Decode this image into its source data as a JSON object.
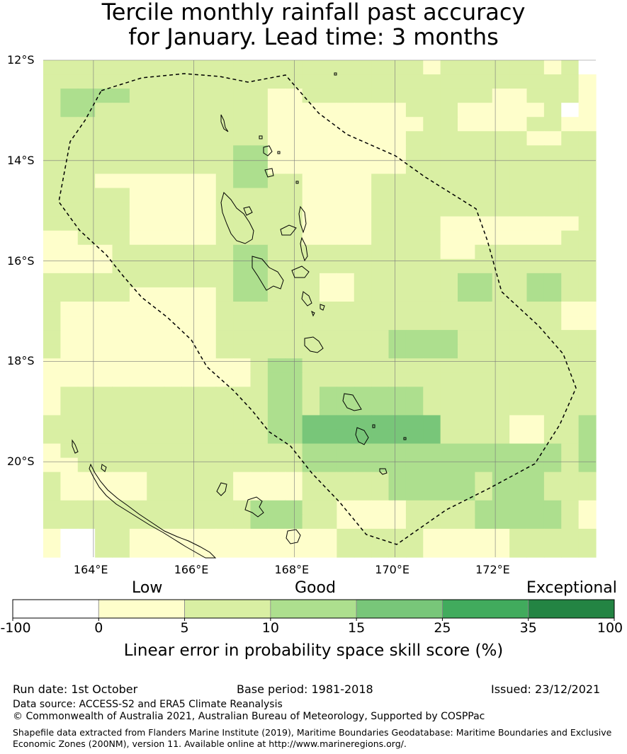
{
  "title_lines": [
    "Tercile monthly rainfall past accuracy",
    "for January. Lead time: 3 months"
  ],
  "chart_data": {
    "type": "heatmap",
    "lon_range": [
      163,
      174
    ],
    "lat_range": [
      -21.9,
      -12
    ],
    "grid_origin_lon": 162.86,
    "grid_origin_lat": -12,
    "cell_deg": 0.833,
    "lon_ticks": [
      "164°E",
      "166°E",
      "168°E",
      "170°E",
      "172°E"
    ],
    "lon_tick_values": [
      164,
      166,
      168,
      170,
      172
    ],
    "lat_ticks": [
      "12°S",
      "14°S",
      "16°S",
      "18°S",
      "20°S"
    ],
    "lat_tick_values": [
      -12,
      -14,
      -16,
      -18,
      -20
    ],
    "grid": true,
    "colorbar": {
      "label": "Linear error in probability space skill score (%)",
      "category_labels": [
        "Low",
        "Good",
        "Exceptional"
      ],
      "bounds": [
        "-100",
        "0",
        "5",
        "10",
        "15",
        "25",
        "35",
        "100"
      ],
      "colors": [
        "#ffffff",
        "#fefecb",
        "#d9efa3",
        "#addf8e",
        "#78c679",
        "#41ab5d",
        "#238443"
      ]
    },
    "cell_classes": [
      [
        2,
        2,
        2,
        2,
        2,
        2,
        2,
        2,
        2,
        2,
        2,
        2,
        2,
        2,
        2,
        2,
        2,
        2,
        2,
        2,
        2,
        2,
        1,
        2,
        2,
        2,
        2,
        2,
        2,
        1,
        2,
        0
      ],
      [
        2,
        2,
        2,
        2,
        2,
        2,
        2,
        2,
        2,
        2,
        2,
        2,
        2,
        2,
        2,
        2,
        2,
        2,
        2,
        2,
        2,
        2,
        2,
        2,
        2,
        2,
        2,
        2,
        2,
        2,
        2,
        1
      ],
      [
        2,
        3,
        3,
        3,
        3,
        2,
        2,
        2,
        2,
        2,
        2,
        2,
        2,
        1,
        1,
        2,
        2,
        2,
        2,
        2,
        2,
        2,
        2,
        2,
        2,
        2,
        1,
        1,
        2,
        2,
        2,
        1
      ],
      [
        2,
        3,
        3,
        2,
        2,
        2,
        2,
        2,
        2,
        2,
        2,
        2,
        2,
        1,
        1,
        1,
        1,
        1,
        1,
        1,
        1,
        2,
        2,
        2,
        1,
        1,
        1,
        1,
        1,
        2,
        0,
        1
      ],
      [
        2,
        2,
        2,
        2,
        2,
        2,
        2,
        2,
        2,
        2,
        2,
        2,
        2,
        1,
        1,
        1,
        1,
        1,
        1,
        1,
        1,
        1,
        2,
        2,
        1,
        1,
        1,
        1,
        2,
        2,
        1,
        1
      ],
      [
        2,
        2,
        2,
        2,
        2,
        2,
        2,
        2,
        2,
        2,
        2,
        2,
        2,
        1,
        1,
        1,
        1,
        1,
        1,
        1,
        1,
        2,
        2,
        2,
        2,
        2,
        2,
        2,
        1,
        1,
        2,
        2
      ],
      [
        2,
        2,
        2,
        2,
        2,
        2,
        2,
        2,
        2,
        2,
        2,
        3,
        3,
        1,
        1,
        1,
        1,
        1,
        1,
        1,
        1,
        2,
        2,
        2,
        2,
        2,
        2,
        2,
        2,
        2,
        2,
        2
      ],
      [
        2,
        2,
        2,
        2,
        2,
        2,
        2,
        2,
        2,
        2,
        2,
        3,
        3,
        1,
        1,
        1,
        1,
        1,
        1,
        1,
        1,
        2,
        2,
        2,
        2,
        2,
        2,
        2,
        2,
        2,
        2,
        2
      ],
      [
        2,
        2,
        2,
        1,
        1,
        1,
        1,
        1,
        1,
        1,
        2,
        3,
        3,
        2,
        2,
        1,
        1,
        1,
        1,
        2,
        2,
        2,
        2,
        2,
        2,
        2,
        2,
        2,
        2,
        2,
        2,
        2
      ],
      [
        2,
        2,
        2,
        2,
        2,
        1,
        1,
        1,
        1,
        1,
        2,
        2,
        2,
        2,
        2,
        1,
        1,
        1,
        1,
        2,
        2,
        2,
        2,
        2,
        2,
        2,
        2,
        2,
        2,
        2,
        2,
        2
      ],
      [
        2,
        2,
        2,
        2,
        2,
        1,
        1,
        1,
        1,
        1,
        2,
        2,
        2,
        2,
        2,
        1,
        1,
        1,
        1,
        2,
        2,
        2,
        2,
        2,
        2,
        2,
        2,
        2,
        2,
        2,
        2,
        2
      ],
      [
        2,
        2,
        2,
        2,
        2,
        1,
        1,
        1,
        1,
        1,
        2,
        2,
        2,
        2,
        2,
        1,
        1,
        1,
        1,
        2,
        2,
        2,
        2,
        1,
        1,
        1,
        1,
        1,
        1,
        1,
        1,
        2
      ],
      [
        1,
        1,
        2,
        2,
        2,
        1,
        1,
        1,
        1,
        1,
        2,
        2,
        2,
        2,
        2,
        1,
        1,
        1,
        1,
        2,
        2,
        2,
        2,
        1,
        1,
        1,
        1,
        1,
        1,
        1,
        2,
        2
      ],
      [
        1,
        1,
        1,
        1,
        2,
        2,
        2,
        2,
        2,
        2,
        2,
        3,
        3,
        2,
        2,
        2,
        2,
        2,
        2,
        2,
        2,
        2,
        2,
        1,
        1,
        2,
        2,
        2,
        2,
        2,
        2,
        2
      ],
      [
        1,
        1,
        1,
        1,
        2,
        2,
        2,
        2,
        2,
        2,
        2,
        3,
        3,
        2,
        2,
        2,
        2,
        2,
        2,
        2,
        2,
        2,
        2,
        2,
        2,
        2,
        2,
        2,
        2,
        2,
        2,
        2
      ],
      [
        2,
        2,
        2,
        2,
        2,
        2,
        2,
        2,
        2,
        2,
        2,
        3,
        3,
        2,
        2,
        2,
        1,
        1,
        2,
        2,
        2,
        2,
        2,
        2,
        3,
        3,
        2,
        2,
        3,
        3,
        2,
        2
      ],
      [
        2,
        2,
        2,
        2,
        2,
        1,
        1,
        1,
        1,
        1,
        2,
        3,
        3,
        2,
        2,
        2,
        1,
        1,
        2,
        2,
        2,
        2,
        2,
        2,
        3,
        3,
        2,
        2,
        3,
        3,
        2,
        2
      ],
      [
        2,
        1,
        1,
        1,
        1,
        1,
        1,
        1,
        1,
        1,
        2,
        2,
        2,
        2,
        2,
        2,
        2,
        2,
        2,
        2,
        2,
        2,
        2,
        2,
        2,
        2,
        2,
        2,
        2,
        2,
        1,
        1
      ],
      [
        2,
        1,
        1,
        1,
        1,
        1,
        1,
        1,
        1,
        1,
        2,
        2,
        2,
        2,
        2,
        2,
        2,
        2,
        2,
        2,
        2,
        2,
        2,
        2,
        2,
        2,
        2,
        2,
        2,
        2,
        1,
        1
      ],
      [
        2,
        1,
        1,
        1,
        1,
        1,
        1,
        1,
        1,
        1,
        2,
        2,
        2,
        2,
        2,
        2,
        2,
        2,
        2,
        2,
        3,
        3,
        3,
        3,
        2,
        2,
        2,
        2,
        2,
        2,
        2,
        2
      ],
      [
        2,
        1,
        1,
        1,
        1,
        1,
        1,
        1,
        1,
        1,
        2,
        2,
        2,
        2,
        2,
        2,
        2,
        2,
        2,
        2,
        3,
        3,
        3,
        3,
        2,
        2,
        2,
        2,
        2,
        2,
        2,
        2
      ],
      [
        1,
        1,
        1,
        1,
        1,
        1,
        1,
        1,
        1,
        1,
        1,
        1,
        2,
        3,
        3,
        2,
        2,
        2,
        2,
        2,
        2,
        2,
        2,
        2,
        2,
        2,
        2,
        2,
        2,
        2,
        2,
        2
      ],
      [
        1,
        1,
        1,
        1,
        1,
        1,
        1,
        1,
        1,
        1,
        1,
        1,
        2,
        3,
        3,
        2,
        2,
        2,
        2,
        2,
        2,
        2,
        2,
        2,
        2,
        2,
        2,
        2,
        2,
        2,
        2,
        2
      ],
      [
        1,
        2,
        2,
        2,
        2,
        2,
        2,
        2,
        2,
        2,
        2,
        2,
        2,
        3,
        3,
        2,
        3,
        3,
        3,
        3,
        3,
        3,
        2,
        2,
        2,
        2,
        2,
        2,
        2,
        2,
        2,
        2
      ],
      [
        1,
        2,
        2,
        2,
        2,
        2,
        2,
        2,
        2,
        2,
        2,
        2,
        2,
        3,
        3,
        2,
        3,
        3,
        3,
        3,
        3,
        3,
        2,
        2,
        2,
        2,
        2,
        2,
        2,
        2,
        2,
        2
      ],
      [
        2,
        2,
        2,
        2,
        2,
        2,
        2,
        2,
        2,
        2,
        2,
        2,
        2,
        3,
        3,
        4,
        4,
        4,
        4,
        4,
        4,
        4,
        4,
        2,
        2,
        2,
        2,
        1,
        1,
        2,
        2,
        3
      ],
      [
        2,
        2,
        2,
        2,
        2,
        2,
        2,
        2,
        2,
        2,
        2,
        2,
        2,
        3,
        3,
        4,
        4,
        4,
        4,
        4,
        4,
        4,
        4,
        2,
        2,
        2,
        2,
        1,
        1,
        2,
        2,
        3
      ],
      [
        1,
        2,
        2,
        2,
        2,
        2,
        2,
        2,
        2,
        2,
        2,
        2,
        2,
        2,
        2,
        3,
        3,
        3,
        3,
        3,
        3,
        3,
        3,
        3,
        3,
        3,
        3,
        3,
        3,
        3,
        2,
        3
      ],
      [
        1,
        1,
        2,
        2,
        2,
        2,
        2,
        2,
        2,
        2,
        2,
        2,
        2,
        2,
        2,
        3,
        3,
        3,
        3,
        3,
        3,
        3,
        3,
        3,
        3,
        3,
        3,
        3,
        3,
        3,
        2,
        3
      ],
      [
        2,
        1,
        1,
        1,
        1,
        1,
        2,
        2,
        2,
        2,
        2,
        1,
        1,
        1,
        1,
        2,
        2,
        2,
        2,
        2,
        3,
        3,
        3,
        3,
        3,
        2,
        3,
        3,
        3,
        2,
        2,
        2
      ],
      [
        2,
        1,
        1,
        1,
        1,
        1,
        2,
        2,
        2,
        2,
        2,
        1,
        1,
        1,
        1,
        2,
        2,
        2,
        2,
        2,
        3,
        3,
        3,
        3,
        3,
        2,
        3,
        3,
        3,
        2,
        2,
        2
      ],
      [
        2,
        2,
        2,
        2,
        2,
        2,
        2,
        2,
        2,
        2,
        2,
        2,
        3,
        3,
        3,
        2,
        2,
        1,
        1,
        1,
        1,
        2,
        2,
        2,
        2,
        3,
        3,
        3,
        3,
        3,
        2,
        1
      ],
      [
        2,
        2,
        2,
        2,
        2,
        2,
        2,
        2,
        2,
        2,
        2,
        2,
        3,
        3,
        3,
        2,
        2,
        1,
        1,
        1,
        1,
        2,
        2,
        2,
        2,
        3,
        3,
        3,
        3,
        3,
        2,
        1
      ],
      [
        1,
        0,
        0,
        2,
        2,
        1,
        1,
        1,
        1,
        1,
        1,
        1,
        1,
        1,
        1,
        1,
        1,
        2,
        2,
        2,
        2,
        2,
        1,
        1,
        1,
        1,
        1,
        2,
        2,
        2,
        2,
        2
      ],
      [
        1,
        0,
        0,
        2,
        2,
        1,
        1,
        1,
        1,
        1,
        1,
        1,
        1,
        1,
        1,
        1,
        1,
        2,
        2,
        2,
        2,
        2,
        1,
        1,
        1,
        1,
        1,
        2,
        2,
        2,
        2,
        2
      ]
    ]
  },
  "footer": {
    "run_date": "Run date: 1st October",
    "base_period": "Base period: 1981-2018",
    "issued": "Issued: 23/12/2021",
    "data_source": "Data source: ACCESS-S2 and ERA5 Climate Reanalysis",
    "copyright": "© Commonwealth of Australia 2021, Australian Bureau of Meteorology, Supported by COSPPac",
    "shapefile_line1": "Shapefile data extracted from Flanders Marine Institute (2019), Maritime Boundaries Geodatabase: Maritime Boundaries and Exclusive",
    "shapefile_line2": "Economic Zones (200NM), version 11. Available online at http://www.marineregions.org/."
  }
}
